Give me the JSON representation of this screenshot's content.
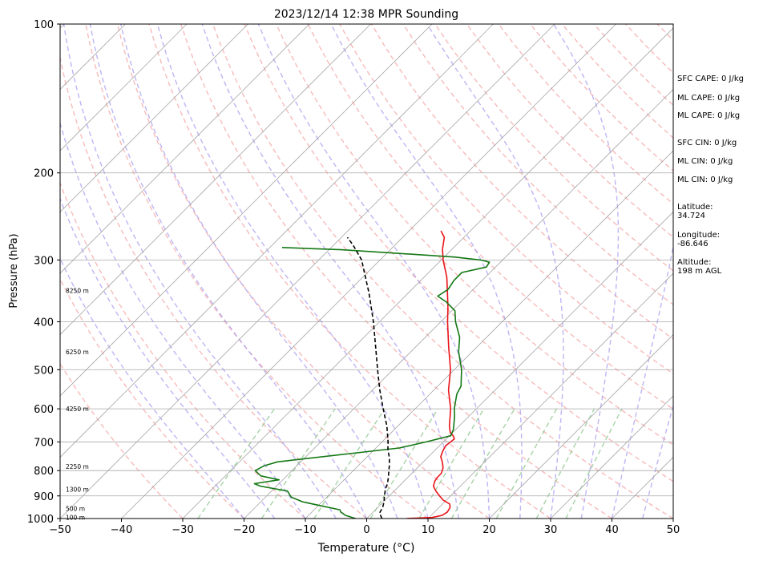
{
  "chart_data": {
    "type": "line",
    "title": "2023/12/14 12:38 MPR Sounding",
    "xlabel": "Temperature (°C)",
    "ylabel": "Pressure (hPa)",
    "xlim": [
      -50,
      50
    ],
    "ylim": [
      1000,
      100
    ],
    "y_scale": "log",
    "skew": "skew-T (isotherms tilted 45°)",
    "grid": true,
    "x_ticks": [
      "−50",
      "−40",
      "−30",
      "−20",
      "−10",
      "0",
      "10",
      "20",
      "30",
      "40",
      "50"
    ],
    "y_ticks": [
      "100",
      "200",
      "300",
      "400",
      "500",
      "600",
      "700",
      "800",
      "900",
      "1000"
    ],
    "height_labels": [
      {
        "text": "8250 m",
        "p": 346
      },
      {
        "text": "6250 m",
        "p": 460
      },
      {
        "text": "4250 m",
        "p": 600
      },
      {
        "text": "2250 m",
        "p": 785
      },
      {
        "text": "1300 m",
        "p": 872
      },
      {
        "text": "500 m",
        "p": 955
      },
      {
        "text": "100 m",
        "p": 995
      }
    ],
    "series": [
      {
        "color": "#e8141a",
        "points": [
          [
            1000,
            6.5
          ],
          [
            995,
            10.5
          ],
          [
            985,
            11.8
          ],
          [
            970,
            12.1
          ],
          [
            950,
            11.8
          ],
          [
            935,
            11.2
          ],
          [
            918,
            9.5
          ],
          [
            900,
            8.2
          ],
          [
            880,
            6.8
          ],
          [
            860,
            5.6
          ],
          [
            840,
            5.0
          ],
          [
            825,
            4.8
          ],
          [
            810,
            4.8
          ],
          [
            790,
            4.2
          ],
          [
            770,
            3.2
          ],
          [
            750,
            2.0
          ],
          [
            730,
            1.4
          ],
          [
            712,
            1.0
          ],
          [
            700,
            1.2
          ],
          [
            690,
            1.3
          ],
          [
            680,
            0.6
          ],
          [
            670,
            -0.4
          ],
          [
            650,
            -1.6
          ],
          [
            600,
            -4.2
          ],
          [
            550,
            -7.6
          ],
          [
            500,
            -10.6
          ],
          [
            450,
            -14.6
          ],
          [
            400,
            -18.9
          ],
          [
            375,
            -21.1
          ],
          [
            350,
            -23.6
          ],
          [
            325,
            -26.3
          ],
          [
            300,
            -29.7
          ],
          [
            285,
            -31.6
          ],
          [
            270,
            -33.2
          ],
          [
            262,
            -34.8
          ]
        ]
      },
      {
        "color": "#147814",
        "points": [
          [
            1000,
            -1.8
          ],
          [
            985,
            -4.0
          ],
          [
            970,
            -5.3
          ],
          [
            960,
            -5.8
          ],
          [
            945,
            -9.0
          ],
          [
            925,
            -13.2
          ],
          [
            905,
            -15.8
          ],
          [
            880,
            -17.4
          ],
          [
            860,
            -22.6
          ],
          [
            850,
            -24.0
          ],
          [
            835,
            -20.6
          ],
          [
            820,
            -24.2
          ],
          [
            800,
            -26.0
          ],
          [
            782,
            -25.3
          ],
          [
            768,
            -23.8
          ],
          [
            720,
            -6.2
          ],
          [
            700,
            -2.8
          ],
          [
            680,
            0.2
          ],
          [
            660,
            -0.4
          ],
          [
            620,
            -2.4
          ],
          [
            600,
            -3.6
          ],
          [
            560,
            -5.6
          ],
          [
            540,
            -6.2
          ],
          [
            500,
            -8.8
          ],
          [
            460,
            -12.2
          ],
          [
            430,
            -14.4
          ],
          [
            400,
            -17.6
          ],
          [
            380,
            -19.5
          ],
          [
            365,
            -22.3
          ],
          [
            355,
            -24.7
          ],
          [
            344,
            -24.1
          ],
          [
            330,
            -24.6
          ],
          [
            318,
            -24.6
          ],
          [
            310,
            -21.5
          ],
          [
            303,
            -21.8
          ],
          [
            300,
            -23.6
          ],
          [
            296,
            -28.2
          ],
          [
            292,
            -36.0
          ],
          [
            286,
            -48.0
          ],
          [
            283,
            -58.0
          ]
        ]
      },
      {
        "color": "#000000",
        "style": "dashed",
        "points": [
          [
            1000,
            2.5
          ],
          [
            975,
            1.2
          ],
          [
            950,
            0.8
          ],
          [
            925,
            0.1
          ],
          [
            900,
            -0.8
          ],
          [
            870,
            -1.8
          ],
          [
            850,
            -2.3
          ],
          [
            825,
            -3.2
          ],
          [
            800,
            -4.2
          ],
          [
            775,
            -5.2
          ],
          [
            750,
            -6.4
          ],
          [
            725,
            -7.8
          ],
          [
            700,
            -9.0
          ],
          [
            650,
            -11.8
          ],
          [
            600,
            -15.2
          ],
          [
            550,
            -18.8
          ],
          [
            500,
            -22.5
          ],
          [
            450,
            -26.5
          ],
          [
            400,
            -31.0
          ],
          [
            350,
            -36.4
          ],
          [
            300,
            -43.0
          ],
          [
            280,
            -46.8
          ],
          [
            270,
            -49.0
          ]
        ]
      }
    ]
  },
  "side_notes": [
    "SFC CAPE: 0 J/kg",
    "ML CAPE: 0 J/kg",
    "ML CAPE: 0 J/kg",
    "SFC CIN: 0 J/kg",
    "ML CIN: 0 J/kg",
    "ML CIN: 0 J/kg",
    "Latitude:\n34.724",
    "Longitude:\n-86.646",
    "Altitude:\n198 m AGL"
  ],
  "colors": {
    "temperature": "#e8141a",
    "dewpoint": "#147814",
    "parcel": "#000000",
    "dry_adiabat": "#f4a4a4",
    "moist_adiabat": "#a89cf0",
    "mixing_ratio": "#90c890",
    "isotherm": "#a8a8a8"
  }
}
